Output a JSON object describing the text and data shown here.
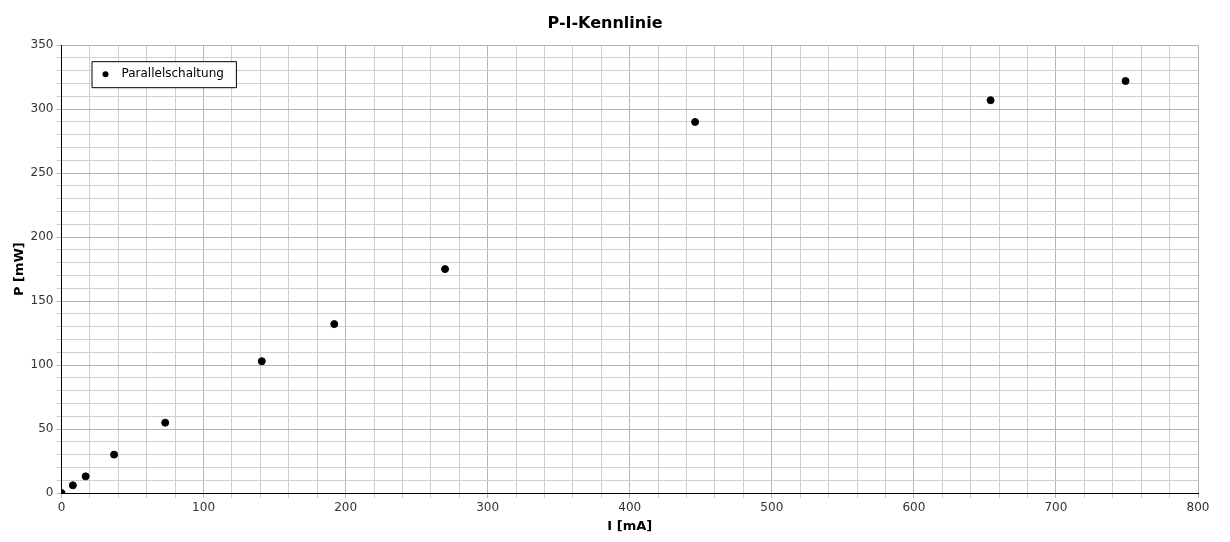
{
  "chart_data": {
    "type": "scatter",
    "title": "P-I-Kennlinie",
    "xlabel": "I [mA]",
    "ylabel": "P [mW]",
    "series": [
      {
        "name": "Parallelschaltung",
        "color": "#000000",
        "x": [
          0,
          8,
          17,
          37,
          73,
          141,
          192,
          270,
          446,
          654,
          749
        ],
        "values": [
          0,
          6,
          13,
          30,
          55,
          103,
          132,
          175,
          290,
          307,
          322
        ]
      }
    ],
    "xlim": [
      0,
      800
    ],
    "ylim": [
      0,
      350
    ],
    "xticks": [
      0,
      {
        "value": 20,
        "label": null
      },
      {
        "value": 40,
        "label": null
      },
      {
        "value": 60,
        "label": null
      },
      {
        "value": 80,
        "label": null
      },
      100,
      {
        "value": 120,
        "label": null
      },
      {
        "value": 140,
        "label": null
      },
      {
        "value": 160,
        "label": null
      },
      {
        "value": 180,
        "label": null
      },
      200,
      {
        "value": 220,
        "label": null
      },
      {
        "value": 240,
        "label": null
      },
      {
        "value": 260,
        "label": null
      },
      {
        "value": 280,
        "label": null
      },
      300,
      {
        "value": 320,
        "label": null
      },
      {
        "value": 340,
        "label": null
      },
      {
        "value": 360,
        "label": null
      },
      {
        "value": 380,
        "label": null
      },
      400,
      {
        "value": 420,
        "label": null
      },
      {
        "value": 440,
        "label": null
      },
      {
        "value": 460,
        "label": null
      },
      {
        "value": 480,
        "label": null
      },
      500,
      {
        "value": 520,
        "label": null
      },
      {
        "value": 540,
        "label": null
      },
      {
        "value": 560,
        "label": null
      },
      {
        "value": 580,
        "label": null
      },
      600,
      {
        "value": 620,
        "label": null
      },
      {
        "value": 640,
        "label": null
      },
      {
        "value": 660,
        "label": null
      },
      {
        "value": 680,
        "label": null
      },
      700,
      {
        "value": 720,
        "label": null
      },
      {
        "value": 740,
        "label": null
      },
      {
        "value": 760,
        "label": null
      },
      {
        "value": 780,
        "label": null
      },
      800
    ],
    "yticks": [
      0,
      {
        "value": 10,
        "label": null
      },
      {
        "value": 20,
        "label": null
      },
      {
        "value": 30,
        "label": null
      },
      {
        "value": 40,
        "label": null
      },
      50,
      {
        "value": 60,
        "label": null
      },
      {
        "value": 70,
        "label": null
      },
      {
        "value": 80,
        "label": null
      },
      {
        "value": 90,
        "label": null
      },
      100,
      {
        "value": 110,
        "label": null
      },
      {
        "value": 120,
        "label": null
      },
      {
        "value": 130,
        "label": null
      },
      {
        "value": 140,
        "label": null
      },
      150,
      {
        "value": 160,
        "label": null
      },
      {
        "value": 170,
        "label": null
      },
      {
        "value": 180,
        "label": null
      },
      {
        "value": 190,
        "label": null
      },
      200,
      {
        "value": 210,
        "label": null
      },
      {
        "value": 220,
        "label": null
      },
      {
        "value": 230,
        "label": null
      },
      {
        "value": 240,
        "label": null
      },
      250,
      {
        "value": 260,
        "label": null
      },
      {
        "value": 270,
        "label": null
      },
      {
        "value": 280,
        "label": null
      },
      {
        "value": 290,
        "label": null
      },
      300,
      {
        "value": 310,
        "label": null
      },
      {
        "value": 320,
        "label": null
      },
      {
        "value": 330,
        "label": null
      },
      {
        "value": 340,
        "label": null
      },
      350
    ],
    "grid": true,
    "legend": "top left",
    "marker": "circle"
  }
}
